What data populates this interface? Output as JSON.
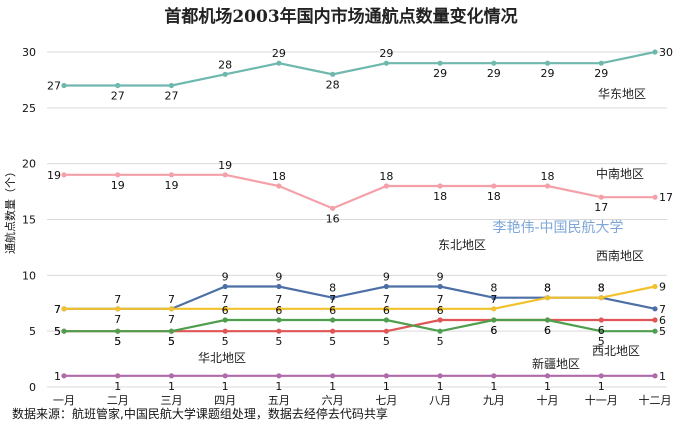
{
  "chart_data": {
    "type": "line",
    "title": "首都机场2003年国内市场通航点数量变化情况",
    "ylabel": "通航点数量（个）",
    "xlabel": "",
    "categories": [
      "一月",
      "二月",
      "三月",
      "四月",
      "五月",
      "六月",
      "七月",
      "八月",
      "九月",
      "十月",
      "十一月",
      "十二月"
    ],
    "yticks": [
      0,
      5,
      10,
      15,
      20,
      25,
      30
    ],
    "ylim": [
      0,
      31
    ],
    "grid": true,
    "series": [
      {
        "name": "华东地区",
        "color": "#6fb8ad",
        "values": [
          27,
          27,
          27,
          28,
          29,
          28,
          29,
          29,
          29,
          29,
          29,
          30
        ]
      },
      {
        "name": "中南地区",
        "color": "#f4a0a8",
        "values": [
          19,
          19,
          19,
          19,
          18,
          16,
          18,
          18,
          18,
          18,
          17,
          17
        ]
      },
      {
        "name": "东北地区",
        "color": "#4c6fa5",
        "values": [
          7,
          7,
          7,
          9,
          9,
          8,
          9,
          9,
          8,
          8,
          8,
          7
        ]
      },
      {
        "name": "西南地区",
        "color": "#f2c12e",
        "values": [
          7,
          7,
          7,
          7,
          7,
          7,
          7,
          7,
          7,
          8,
          8,
          9
        ]
      },
      {
        "name": "华北地区",
        "color": "#e05555",
        "values": [
          5,
          5,
          5,
          5,
          5,
          5,
          5,
          6,
          6,
          6,
          6,
          6
        ]
      },
      {
        "name": "西北地区",
        "color": "#4e9e4e",
        "values": [
          5,
          5,
          5,
          6,
          6,
          6,
          6,
          5,
          6,
          6,
          5,
          5
        ]
      },
      {
        "name": "新疆地区",
        "color": "#b06aa8",
        "values": [
          1,
          1,
          1,
          1,
          1,
          1,
          1,
          1,
          1,
          1,
          1,
          1
        ]
      }
    ]
  },
  "watermark": "李艳伟-中国民航大学",
  "source": "数据来源：航班管家,中国民航大学课题组处理，数据去经停去代码共享"
}
